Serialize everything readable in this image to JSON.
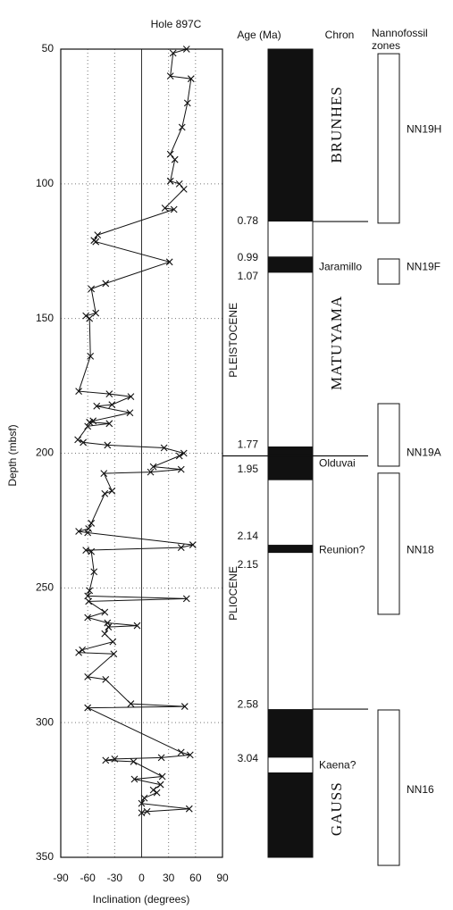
{
  "chart_data": {
    "type": "line",
    "title": "Hole 897C",
    "xlabel": "Inclination (degrees)",
    "ylabel": "Depth (mbsf)",
    "xlim": [
      -90,
      90
    ],
    "ylim": [
      350,
      50
    ],
    "xticks": [
      -90,
      -60,
      -30,
      0,
      30,
      60,
      90
    ],
    "yticks": [
      50,
      100,
      150,
      200,
      250,
      300,
      350
    ],
    "grid": true,
    "color": "#111111",
    "y": [
      50,
      51.5,
      60,
      61,
      70,
      79,
      89,
      91,
      99,
      100,
      102,
      109,
      109.5,
      119,
      121,
      121.5,
      129,
      137,
      139,
      148,
      149,
      150,
      164,
      177,
      178,
      179,
      182,
      182.5,
      185,
      188,
      188.5,
      189,
      190,
      195,
      196,
      197,
      198,
      200,
      201,
      205,
      206,
      207,
      207.5,
      214,
      215,
      226,
      228,
      229,
      229.5,
      234,
      235,
      236,
      236.5,
      244,
      251,
      253,
      254,
      255,
      259,
      261,
      263,
      264,
      264.5,
      267,
      270,
      273,
      274,
      274.5,
      283,
      284,
      293,
      294,
      294.5,
      311,
      312,
      313,
      313.5,
      314,
      314.5,
      320,
      321,
      323,
      325,
      326,
      328,
      330,
      332,
      333,
      333.5
    ],
    "x": [
      50,
      35,
      32,
      55,
      51,
      45,
      32,
      37,
      32,
      42,
      47,
      26,
      36,
      -49,
      -53,
      -51,
      31,
      -40,
      -56,
      -51,
      -62,
      -58,
      -57,
      -70,
      -36,
      -12,
      -33,
      -50,
      -13,
      -54,
      -58,
      -36,
      -60,
      -71,
      -65,
      -38,
      25,
      47,
      42,
      13,
      44,
      10,
      -42,
      -33,
      -41,
      -56,
      -59,
      -70,
      -60,
      57,
      44,
      -62,
      -56,
      -53,
      -58,
      -60,
      50,
      -59,
      -41,
      -60,
      -38,
      -5,
      -37,
      -41,
      -32,
      -66,
      -70,
      -31,
      -60,
      -40,
      -12,
      48,
      -60,
      44,
      54,
      22,
      -30,
      -40,
      -9,
      23,
      -8,
      21,
      13,
      17,
      3,
      0,
      53,
      6,
      0
    ],
    "age_header": "Age (Ma)",
    "ages": [
      {
        "age": 0.78,
        "depth": 114
      },
      {
        "age": 0.99,
        "depth": 127.5
      },
      {
        "age": 1.07,
        "depth": 134.5
      },
      {
        "age": 1.77,
        "depth": 197
      },
      {
        "age": 1.95,
        "depth": 206
      },
      {
        "age": 2.14,
        "depth": 231
      },
      {
        "age": 2.15,
        "depth": 241.5
      },
      {
        "age": 2.58,
        "depth": 293.5
      },
      {
        "age": 3.04,
        "depth": 313.5
      }
    ],
    "epochs": [
      {
        "name": "PLEISTOCENE",
        "depth": 158
      },
      {
        "name": "PLIOCENE",
        "depth": 252
      }
    ],
    "chron_header": "Chron",
    "normal_intervals": [
      [
        50,
        114
      ],
      [
        127,
        133
      ],
      [
        197.5,
        210
      ],
      [
        234,
        237
      ],
      [
        295,
        313
      ],
      [
        318.5,
        350
      ]
    ],
    "boundaries": [
      114,
      201,
      295
    ],
    "chrons": [
      {
        "name": "BRUNHES",
        "depth": 78
      },
      {
        "name": "MATUYAMA",
        "depth": 159
      },
      {
        "name": "GAUSS",
        "depth": 332
      }
    ],
    "subchrons": [
      {
        "name": "Jaramillo",
        "depth": 131
      },
      {
        "name": "Olduvai",
        "depth": 204
      },
      {
        "name": "Reunion?",
        "depth": 236
      },
      {
        "name": "Kaena?",
        "depth": 316
      }
    ],
    "zone_header": [
      "Nannofossil",
      "zones"
    ],
    "zones": [
      {
        "name": "NN19H",
        "top": 51.7,
        "bottom": 114.6,
        "depth": 80
      },
      {
        "name": "NN19F",
        "top": 127.9,
        "bottom": 137.2,
        "depth": 131
      },
      {
        "name": "NN19A",
        "top": 181.6,
        "bottom": 204.8,
        "depth": 200
      },
      {
        "name": "NN18",
        "top": 207.4,
        "bottom": 259.8,
        "depth": 236
      },
      {
        "name": "NN16",
        "top": 295.3,
        "bottom": 353,
        "depth": 325
      }
    ]
  }
}
